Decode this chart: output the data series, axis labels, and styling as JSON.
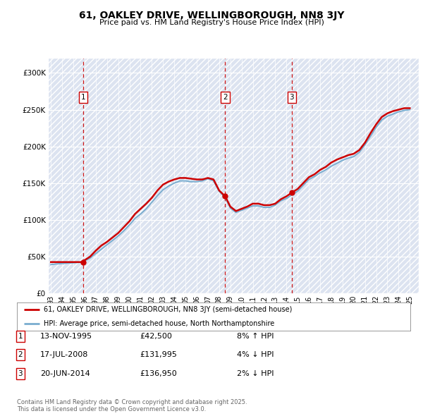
{
  "title": "61, OAKLEY DRIVE, WELLINGBOROUGH, NN8 3JY",
  "subtitle": "Price paid vs. HM Land Registry's House Price Index (HPI)",
  "ylabel_ticks": [
    "£0",
    "£50K",
    "£100K",
    "£150K",
    "£200K",
    "£250K",
    "£300K"
  ],
  "ytick_values": [
    0,
    50000,
    100000,
    150000,
    200000,
    250000,
    300000
  ],
  "ylim": [
    0,
    320000
  ],
  "xlim_start": 1992.8,
  "xlim_end": 2025.8,
  "transactions": [
    {
      "num": 1,
      "date_num": 1995.87,
      "price": 42500,
      "label": "1"
    },
    {
      "num": 2,
      "date_num": 2008.54,
      "price": 131995,
      "label": "2"
    },
    {
      "num": 3,
      "date_num": 2014.47,
      "price": 136950,
      "label": "3"
    }
  ],
  "transaction_table": [
    {
      "num": "1",
      "date": "13-NOV-1995",
      "price": "£42,500",
      "hpi": "8% ↑ HPI"
    },
    {
      "num": "2",
      "date": "17-JUL-2008",
      "price": "£131,995",
      "hpi": "4% ↓ HPI"
    },
    {
      "num": "3",
      "date": "20-JUN-2014",
      "price": "£136,950",
      "hpi": "2% ↓ HPI"
    }
  ],
  "legend_line1": "61, OAKLEY DRIVE, WELLINGBOROUGH, NN8 3JY (semi-detached house)",
  "legend_line2": "HPI: Average price, semi-detached house, North Northamptonshire",
  "footer": "Contains HM Land Registry data © Crown copyright and database right 2025.\nThis data is licensed under the Open Government Licence v3.0.",
  "property_line_color": "#cc0000",
  "hpi_line_color": "#7aadcf",
  "transaction_marker_color": "#cc0000",
  "vline_color": "#cc0000",
  "plot_bg": "#dce3f0",
  "property_data_x": [
    1993.0,
    1993.5,
    1994.0,
    1994.5,
    1995.0,
    1995.5,
    1995.87,
    1996.0,
    1996.5,
    1997.0,
    1997.5,
    1998.0,
    1998.5,
    1999.0,
    1999.5,
    2000.0,
    2000.5,
    2001.0,
    2001.5,
    2002.0,
    2002.5,
    2003.0,
    2003.5,
    2004.0,
    2004.5,
    2005.0,
    2005.5,
    2006.0,
    2006.5,
    2007.0,
    2007.5,
    2008.0,
    2008.54,
    2009.0,
    2009.5,
    2010.0,
    2010.5,
    2011.0,
    2011.5,
    2012.0,
    2012.5,
    2013.0,
    2013.5,
    2014.0,
    2014.47,
    2015.0,
    2015.5,
    2016.0,
    2016.5,
    2017.0,
    2017.5,
    2018.0,
    2018.5,
    2019.0,
    2019.5,
    2020.0,
    2020.5,
    2021.0,
    2021.5,
    2022.0,
    2022.5,
    2023.0,
    2023.5,
    2024.0,
    2024.5,
    2025.0
  ],
  "property_data_y": [
    42500,
    42500,
    42500,
    42500,
    42500,
    42500,
    42500,
    45000,
    50000,
    58000,
    65000,
    70000,
    76000,
    82000,
    90000,
    98000,
    108000,
    115000,
    122000,
    130000,
    140000,
    148000,
    152000,
    155000,
    157000,
    157000,
    156000,
    155000,
    155000,
    157000,
    155000,
    140000,
    131995,
    118000,
    112000,
    115000,
    118000,
    122000,
    122000,
    120000,
    120000,
    122000,
    128000,
    132000,
    136950,
    142000,
    150000,
    158000,
    162000,
    168000,
    172000,
    178000,
    182000,
    185000,
    188000,
    190000,
    195000,
    205000,
    218000,
    230000,
    240000,
    245000,
    248000,
    250000,
    252000,
    252000
  ],
  "hpi_data_x": [
    1993.0,
    1993.5,
    1994.0,
    1994.5,
    1995.0,
    1995.5,
    1995.87,
    1996.0,
    1996.5,
    1997.0,
    1997.5,
    1998.0,
    1998.5,
    1999.0,
    1999.5,
    2000.0,
    2000.5,
    2001.0,
    2001.5,
    2002.0,
    2002.5,
    2003.0,
    2003.5,
    2004.0,
    2004.5,
    2005.0,
    2005.5,
    2006.0,
    2006.5,
    2007.0,
    2007.5,
    2008.0,
    2008.54,
    2009.0,
    2009.5,
    2010.0,
    2010.5,
    2011.0,
    2011.5,
    2012.0,
    2012.5,
    2013.0,
    2013.5,
    2014.0,
    2014.47,
    2015.0,
    2015.5,
    2016.0,
    2016.5,
    2017.0,
    2017.5,
    2018.0,
    2018.5,
    2019.0,
    2019.5,
    2020.0,
    2020.5,
    2021.0,
    2021.5,
    2022.0,
    2022.5,
    2023.0,
    2023.5,
    2024.0,
    2024.5,
    2025.0
  ],
  "hpi_data_y": [
    39000,
    40000,
    40500,
    41000,
    41500,
    42000,
    42500,
    44000,
    48000,
    54000,
    60000,
    66000,
    72000,
    78000,
    85000,
    93000,
    102000,
    108000,
    115000,
    124000,
    133000,
    141000,
    146000,
    150000,
    153000,
    153000,
    152000,
    152000,
    153000,
    156000,
    153000,
    139000,
    130000,
    116000,
    110000,
    113000,
    116000,
    119000,
    119000,
    117000,
    117000,
    120000,
    126000,
    129000,
    134000,
    139000,
    147000,
    155000,
    159000,
    164000,
    168000,
    173000,
    177000,
    181000,
    184000,
    186000,
    192000,
    202000,
    214000,
    226000,
    236000,
    241000,
    244000,
    247000,
    249000,
    250000
  ]
}
